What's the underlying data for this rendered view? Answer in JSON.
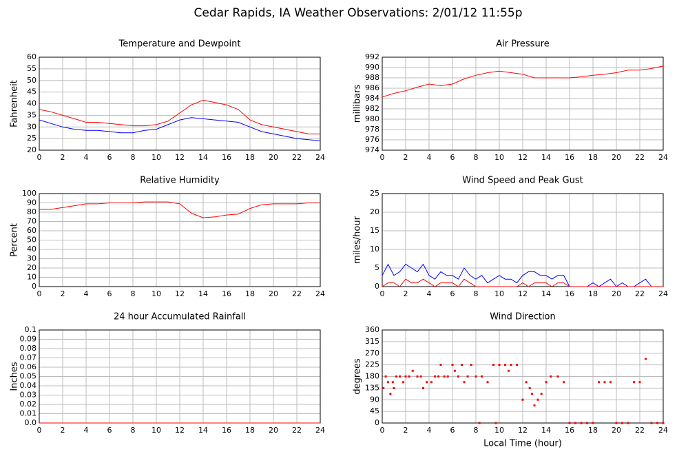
{
  "title": "Cedar Rapids, IA Weather Observations: 2/01/12 11:55p",
  "chart_data": [
    {
      "type": "line",
      "title": "Temperature and Dewpoint",
      "ylabel": "Fahrenheit",
      "x": [
        0,
        1,
        2,
        3,
        4,
        5,
        6,
        7,
        8,
        9,
        10,
        11,
        12,
        13,
        14,
        15,
        16,
        17,
        18,
        19,
        20,
        21,
        22,
        23,
        24
      ],
      "series": [
        {
          "color": "#ff0000",
          "values": [
            37.5,
            36.5,
            35,
            33.5,
            32,
            32,
            31.5,
            31,
            30.5,
            30.5,
            31,
            32.5,
            36,
            39.5,
            41.5,
            40.5,
            39.5,
            37.5,
            33,
            31,
            30,
            29,
            28,
            27,
            27
          ]
        },
        {
          "color": "#0000ff",
          "values": [
            33,
            31.5,
            30,
            29,
            28.5,
            28.5,
            28,
            27.5,
            27.5,
            28.5,
            29,
            31,
            33,
            34,
            33.5,
            33,
            32.5,
            32,
            30,
            28,
            27,
            26,
            25,
            24.5,
            24
          ]
        }
      ],
      "xlim": [
        0,
        24
      ],
      "xticks": [
        0,
        2,
        4,
        6,
        8,
        10,
        12,
        14,
        16,
        18,
        20,
        22,
        24
      ],
      "ylim": [
        20,
        60
      ],
      "yticks": [
        20,
        25,
        30,
        35,
        40,
        45,
        50,
        55,
        60
      ],
      "grid": true
    },
    {
      "type": "line",
      "title": "Air Pressure",
      "ylabel": "millibars",
      "x": [
        0,
        1,
        2,
        3,
        4,
        5,
        6,
        7,
        8,
        9,
        10,
        11,
        12,
        13,
        14,
        15,
        16,
        17,
        18,
        19,
        20,
        21,
        22,
        23,
        24
      ],
      "series": [
        {
          "color": "#ff0000",
          "values": [
            984.3,
            985,
            985.5,
            986.2,
            986.8,
            986.5,
            986.8,
            987.8,
            988.5,
            989,
            989.3,
            989,
            988.7,
            988,
            988,
            988,
            988,
            988.2,
            988.5,
            988.7,
            989,
            989.5,
            989.5,
            989.8,
            990.3
          ]
        }
      ],
      "xlim": [
        0,
        24
      ],
      "xticks": [
        0,
        2,
        4,
        6,
        8,
        10,
        12,
        14,
        16,
        18,
        20,
        22,
        24
      ],
      "ylim": [
        974,
        992
      ],
      "yticks": [
        974,
        976,
        978,
        980,
        982,
        984,
        986,
        988,
        990,
        992
      ],
      "grid": true
    },
    {
      "type": "line",
      "title": "Relative Humidity",
      "ylabel": "Percent",
      "x": [
        0,
        1,
        2,
        3,
        4,
        5,
        6,
        7,
        8,
        9,
        10,
        11,
        12,
        13,
        14,
        15,
        16,
        17,
        18,
        19,
        20,
        21,
        22,
        23,
        24
      ],
      "series": [
        {
          "color": "#ff0000",
          "values": [
            83,
            83,
            85,
            87,
            89,
            89,
            90,
            90,
            90,
            91,
            91,
            91,
            89,
            79,
            74,
            75,
            77,
            78,
            84,
            88,
            89,
            89,
            89,
            90,
            90
          ]
        }
      ],
      "xlim": [
        0,
        24
      ],
      "xticks": [
        0,
        2,
        4,
        6,
        8,
        10,
        12,
        14,
        16,
        18,
        20,
        22,
        24
      ],
      "ylim": [
        0,
        100
      ],
      "yticks": [
        0,
        10,
        20,
        30,
        40,
        50,
        60,
        70,
        80,
        90,
        100
      ],
      "grid": true
    },
    {
      "type": "line",
      "title": "Wind Speed and Peak Gust",
      "ylabel": "miles/hour",
      "x": [
        0,
        0.5,
        1,
        1.5,
        2,
        2.5,
        3,
        3.5,
        4,
        4.5,
        5,
        5.5,
        6,
        6.5,
        7,
        7.5,
        8,
        8.5,
        9,
        9.5,
        10,
        10.5,
        11,
        11.5,
        12,
        12.5,
        13,
        13.5,
        14,
        14.5,
        15,
        15.5,
        16,
        16.5,
        17,
        17.5,
        18,
        18.5,
        19,
        19.5,
        20,
        20.5,
        21,
        21.5,
        22,
        22.5,
        23,
        23.5,
        24
      ],
      "series": [
        {
          "color": "#0000ff",
          "values": [
            3,
            6,
            3,
            4,
            6,
            5,
            4,
            6,
            3,
            2,
            4,
            3,
            3,
            2,
            5,
            3,
            2,
            3,
            1,
            2,
            3,
            2,
            2,
            1,
            3,
            4,
            4,
            3,
            3,
            2,
            3,
            3,
            0,
            0,
            0,
            0,
            1,
            0,
            1,
            2,
            0,
            1,
            0,
            0,
            1,
            2,
            0,
            0,
            0
          ]
        },
        {
          "color": "#ff0000",
          "values": [
            0,
            1,
            1,
            0,
            2,
            1,
            1,
            2,
            1,
            0,
            1,
            1,
            1,
            0,
            2,
            1,
            0,
            0,
            0,
            0,
            0,
            0,
            0,
            0,
            1,
            0,
            1,
            1,
            1,
            0,
            1,
            1,
            0,
            0,
            0,
            0,
            0,
            0,
            0,
            0,
            0,
            0,
            0,
            0,
            0,
            0,
            0,
            0,
            0
          ]
        }
      ],
      "xlim": [
        0,
        24
      ],
      "xticks": [
        0,
        2,
        4,
        6,
        8,
        10,
        12,
        14,
        16,
        18,
        20,
        22,
        24
      ],
      "ylim": [
        0,
        25
      ],
      "yticks": [
        0,
        5,
        10,
        15,
        20,
        25
      ],
      "grid": true
    },
    {
      "type": "line",
      "title": "24 hour Accumulated Rainfall",
      "ylabel": "Inches",
      "x": [
        0,
        2,
        4,
        6,
        8,
        10,
        12,
        14,
        16,
        18,
        20,
        22,
        24
      ],
      "series": [
        {
          "color": "#ff0000",
          "values": [
            0,
            0,
            0,
            0,
            0,
            0,
            0,
            0,
            0,
            0,
            0,
            0,
            0
          ]
        }
      ],
      "xlim": [
        0,
        24
      ],
      "xticks": [
        0,
        2,
        4,
        6,
        8,
        10,
        12,
        14,
        16,
        18,
        20,
        22,
        24
      ],
      "ylim": [
        0,
        0.1
      ],
      "yticks": [
        {
          "value": 0,
          "label": "0.0"
        },
        0.01,
        0.02,
        0.03,
        0.04,
        0.05,
        0.06,
        0.07,
        0.08,
        0.09,
        0.1
      ],
      "grid": true
    },
    {
      "type": "scatter",
      "title": "Wind Direction",
      "ylabel": "degrees",
      "xlabel": "Local Time (hour)",
      "color": "#ff0000",
      "x": [
        0.1,
        0.3,
        0.5,
        0.7,
        0.9,
        1,
        1.2,
        1.5,
        1.8,
        2,
        2.3,
        2.6,
        3,
        3.3,
        3.5,
        3.8,
        4.2,
        4.5,
        4.8,
        5,
        5.3,
        5.6,
        6,
        6.2,
        6.5,
        6.8,
        7,
        7.3,
        7.6,
        8,
        8.3,
        8.5,
        9,
        9.5,
        9.7,
        10,
        10.5,
        10.8,
        11,
        11.5,
        12,
        12.3,
        12.6,
        12.8,
        13,
        13.3,
        13.6,
        14,
        14.4,
        15,
        15.5,
        16,
        16.5,
        17,
        17.5,
        18,
        18.5,
        19,
        19.5,
        20,
        20.5,
        21,
        21.5,
        22,
        22.5,
        23,
        23.5,
        24
      ],
      "values": [
        135,
        180,
        158,
        113,
        158,
        135,
        180,
        180,
        158,
        180,
        180,
        202,
        180,
        180,
        135,
        158,
        158,
        180,
        180,
        225,
        180,
        180,
        225,
        202,
        180,
        225,
        158,
        180,
        225,
        180,
        0,
        180,
        158,
        225,
        0,
        225,
        225,
        202,
        225,
        225,
        90,
        158,
        135,
        113,
        68,
        90,
        113,
        158,
        180,
        180,
        158,
        0,
        0,
        0,
        0,
        0,
        158,
        158,
        158,
        0,
        0,
        0,
        158,
        158,
        248,
        0,
        0,
        0
      ],
      "xlim": [
        0,
        24
      ],
      "xticks": [
        0,
        2,
        4,
        6,
        8,
        10,
        12,
        14,
        16,
        18,
        20,
        22,
        24
      ],
      "ylim": [
        0,
        360
      ],
      "yticks": [
        0,
        45,
        90,
        135,
        180,
        225,
        270,
        315,
        360
      ],
      "grid": true
    }
  ]
}
